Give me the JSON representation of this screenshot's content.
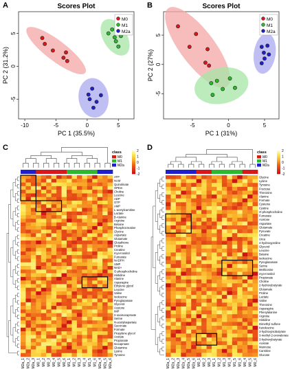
{
  "panel_letters": [
    "A",
    "B",
    "C",
    "D"
  ],
  "legend_groups": [
    "M0",
    "M1",
    "M2a"
  ],
  "group_colors": {
    "M0": "#d7191c",
    "M1": "#2db82d",
    "M2a": "#1f1fcc"
  },
  "heatmap_scale_ticks": [
    "2",
    "1",
    "0",
    "-1",
    "-2"
  ],
  "heatmap_legend_title": "class",
  "chart_data": [
    {
      "type": "scatter",
      "panel": "A",
      "title": "Scores Plot",
      "xlabel": "PC 1 (35.5%)",
      "ylabel": "PC 2 (31.2%)",
      "xlim": [
        -11,
        7.5
      ],
      "ylim": [
        -8,
        8.3
      ],
      "xticks": [
        -10,
        -5,
        0,
        5
      ],
      "yticks": [
        -5,
        0,
        5
      ],
      "series": [
        {
          "name": "M0",
          "points": [
            [
              -7.2,
              4.3
            ],
            [
              -6.8,
              3.4
            ],
            [
              -5.5,
              2.4
            ],
            [
              -3.8,
              1.3
            ],
            [
              -3.2,
              0.8
            ],
            [
              -3.4,
              2.1
            ]
          ]
        },
        {
          "name": "M1",
          "points": [
            [
              3.4,
              5.0
            ],
            [
              4.0,
              5.6
            ],
            [
              4.6,
              3.8
            ],
            [
              5.0,
              3.0
            ],
            [
              5.4,
              4.6
            ],
            [
              4.4,
              4.4
            ]
          ]
        },
        {
          "name": "M2a",
          "points": [
            [
              0.4,
              -5.0
            ],
            [
              0.8,
              -3.4
            ],
            [
              1.5,
              -5.4
            ],
            [
              1.0,
              -6.3
            ],
            [
              2.2,
              -4.4
            ],
            [
              0.2,
              -4.3
            ]
          ]
        }
      ]
    },
    {
      "type": "scatter",
      "panel": "B",
      "title": "Scores Plot",
      "xlabel": "PC 1 (31%)",
      "ylabel": "PC 2 (27%)",
      "xlim": [
        -9,
        7
      ],
      "ylim": [
        -9.3,
        9.0
      ],
      "xticks": [
        -5,
        0,
        5
      ],
      "yticks": [
        -5,
        0,
        5
      ],
      "series": [
        {
          "name": "M0",
          "points": [
            [
              -7.0,
              6.5
            ],
            [
              -5.4,
              3.0
            ],
            [
              -4.5,
              5.2
            ],
            [
              -3.2,
              0.3
            ],
            [
              -2.9,
              2.6
            ],
            [
              -2.7,
              -0.2
            ]
          ]
        },
        {
          "name": "M1",
          "points": [
            [
              -2.2,
              -5.2
            ],
            [
              -1.6,
              -2.8
            ],
            [
              -0.8,
              -4.2
            ],
            [
              0.2,
              -2.4
            ],
            [
              0.9,
              -4.0
            ],
            [
              -2.4,
              -3.2
            ]
          ]
        },
        {
          "name": "M2a",
          "points": [
            [
              4.6,
              3.0
            ],
            [
              4.9,
              2.0
            ],
            [
              5.4,
              3.2
            ],
            [
              5.0,
              1.0
            ],
            [
              4.6,
              0.2
            ],
            [
              5.6,
              1.7
            ]
          ]
        }
      ]
    },
    {
      "type": "heatmap",
      "panel": "C",
      "legend_title": "class",
      "legend": [
        "M0",
        "M1",
        "M2a"
      ],
      "scale_ticks": [
        2,
        1,
        0,
        -1,
        -2
      ],
      "columns": [
        "M2a_1",
        "M2a_2",
        "M2a_3",
        "M0_1",
        "M0_2",
        "M0_3",
        "M0_4",
        "M0_5",
        "M0_6",
        "M1_1",
        "M1_2",
        "M1_3",
        "M1_4",
        "M1_5",
        "M1_6",
        "M2a_4",
        "M2a_5",
        "M2a_6"
      ],
      "column_groups": [
        "M2a",
        "M2a",
        "M2a",
        "M0",
        "M0",
        "M0",
        "M0",
        "M0",
        "M0",
        "M1",
        "M1",
        "M1",
        "M1",
        "M1",
        "M1",
        "M2a",
        "M2a",
        "M2a"
      ],
      "rows": [
        "ATP",
        "NAM",
        "Quinolinate",
        "OPEm",
        "Choline",
        "Leucine",
        "ADP",
        "GTP",
        "AMP",
        "L-acetylcarnitine",
        "Lactate",
        "β-Alanine",
        "Arginine",
        "Betaine",
        "Phosphocreatine",
        "Glycine",
        "Aspartate",
        "Glutamate",
        "Glutathione",
        "Proline",
        "Creatine",
        "myo-Inositol",
        "Fumarate",
        "NADPH",
        "UMP",
        "NAD+",
        "O-phosphocholine",
        "Histidine",
        "Alanine",
        "Asparagine",
        "Ethylene glycol",
        "Leucine",
        "Valine",
        "Isoleucine",
        "Pyroglutamate",
        "Glycerol",
        "Acetone",
        "IMP",
        "2-oxoisocaproate",
        "Serine",
        "N-acetylaspartate",
        "Succinate",
        "Formate",
        "Propylene glycol",
        "Acetate",
        "Propionate",
        "Isocaproate",
        "Glutamine",
        "Lysine",
        "Tyrosine"
      ],
      "highlight_boxes": 3
    },
    {
      "type": "heatmap",
      "panel": "D",
      "legend_title": "class",
      "legend": [
        "M0",
        "M1",
        "M2a"
      ],
      "scale_ticks": [
        2,
        1,
        0,
        -1,
        -2
      ],
      "columns": [
        "M2a_1",
        "M2a_2",
        "M2a_3",
        "M2a_4",
        "M2a_5",
        "M2a_6",
        "M0_1",
        "M0_2",
        "M0_3",
        "M1_1",
        "M1_2",
        "M1_3",
        "M1_4",
        "M1_5",
        "M1_6",
        "M0_4",
        "M0_5",
        "M0_6"
      ],
      "column_groups": [
        "M2a",
        "M2a",
        "M2a",
        "M2a",
        "M2a",
        "M2a",
        "M0",
        "M0",
        "M0",
        "M1",
        "M1",
        "M1",
        "M1",
        "M1",
        "M1",
        "M0",
        "M0",
        "M0"
      ],
      "rows": [
        "Glycine",
        "Lysine",
        "Tyrosine",
        "Fructose",
        "Threonine",
        "Alanine",
        "Formate",
        "Cysteine",
        "Cystine",
        "O-phosphocholine",
        "Fumarate",
        "Acetone",
        "Aspartate",
        "Glutamate",
        "Pyruvate",
        "Creatine",
        "Urea",
        "4-hydroxyproline",
        "Glycerol",
        "Leucine",
        "Betaine",
        "Isoleucine",
        "Pyroglutamate",
        "Serine",
        "Methionine",
        "myo-Inositol",
        "Propionate",
        "Choline",
        "2-hydroxybutyrate",
        "Glutamate",
        "Proline",
        "Lactate",
        "Valine",
        "Threonine",
        "Asparagine",
        "Phenylalanine",
        "Arginine",
        "Histidine",
        "Dimethyl sulfone",
        "Ketoleucine",
        "3-hydroxyisobutyrate",
        "3-methyl-2-oxovalerate",
        "3-hydroxybutyrate",
        "Acetate",
        "Mannose",
        "Carnitine",
        "Glucose"
      ],
      "highlight_boxes": 3
    }
  ]
}
